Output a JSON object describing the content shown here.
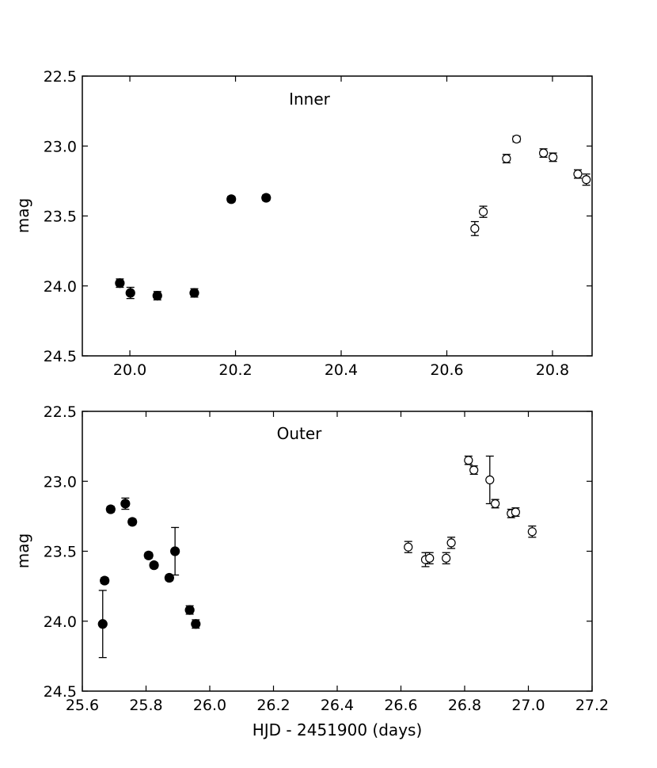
{
  "chart_data": [
    {
      "type": "scatter",
      "panel_label": "Inner",
      "xlabel": "",
      "ylabel": "mag",
      "xlim": [
        19.91,
        20.875
      ],
      "ylim": [
        24.5,
        22.5
      ],
      "y_inverted": true,
      "xticks": [
        "20.0",
        "20.2",
        "20.4",
        "20.6",
        "20.8"
      ],
      "xtick_values": [
        20.0,
        20.2,
        20.4,
        20.6,
        20.8
      ],
      "yticks": [
        "22.5",
        "23.0",
        "23.5",
        "24.0",
        "24.5"
      ],
      "ytick_values": [
        22.5,
        23.0,
        23.5,
        24.0,
        24.5
      ],
      "grid": false,
      "series": [
        {
          "marker": "filled-circle",
          "points": [
            {
              "x": 19.981,
              "y": 23.98,
              "err": 0.03
            },
            {
              "x": 20.001,
              "y": 24.05,
              "err": 0.04
            },
            {
              "x": 20.052,
              "y": 24.07,
              "err": 0.03
            },
            {
              "x": 20.122,
              "y": 24.05,
              "err": 0.03
            },
            {
              "x": 20.192,
              "y": 23.38,
              "err": 0.02
            },
            {
              "x": 20.258,
              "y": 23.37,
              "err": 0.02
            }
          ]
        },
        {
          "marker": "open-circle",
          "points": [
            {
              "x": 20.653,
              "y": 23.59,
              "err": 0.05
            },
            {
              "x": 20.669,
              "y": 23.47,
              "err": 0.04
            },
            {
              "x": 20.713,
              "y": 23.09,
              "err": 0.03
            },
            {
              "x": 20.732,
              "y": 22.95,
              "err": 0.02
            },
            {
              "x": 20.783,
              "y": 23.05,
              "err": 0.03
            },
            {
              "x": 20.801,
              "y": 23.08,
              "err": 0.03
            },
            {
              "x": 20.848,
              "y": 23.2,
              "err": 0.03
            },
            {
              "x": 20.864,
              "y": 23.24,
              "err": 0.04
            }
          ]
        }
      ]
    },
    {
      "type": "scatter",
      "panel_label": "Outer",
      "xlabel": "HJD - 2451900 (days)",
      "ylabel": "mag",
      "xlim": [
        25.6,
        27.2
      ],
      "ylim": [
        24.5,
        22.5
      ],
      "y_inverted": true,
      "xticks": [
        "25.6",
        "25.8",
        "26.0",
        "26.2",
        "26.4",
        "26.6",
        "26.8",
        "27.0",
        "27.2"
      ],
      "xtick_values": [
        25.6,
        25.8,
        26.0,
        26.2,
        26.4,
        26.6,
        26.8,
        27.0,
        27.2
      ],
      "yticks": [
        "22.5",
        "23.0",
        "23.5",
        "24.0",
        "24.5"
      ],
      "ytick_values": [
        22.5,
        23.0,
        23.5,
        24.0,
        24.5
      ],
      "grid": false,
      "series": [
        {
          "marker": "filled-circle",
          "points": [
            {
              "x": 25.664,
              "y": 24.02,
              "err": 0.24
            },
            {
              "x": 25.67,
              "y": 23.71,
              "err": 0.02
            },
            {
              "x": 25.689,
              "y": 23.2,
              "err": 0.02
            },
            {
              "x": 25.735,
              "y": 23.16,
              "err": 0.04
            },
            {
              "x": 25.757,
              "y": 23.29,
              "err": 0.02
            },
            {
              "x": 25.808,
              "y": 23.53,
              "err": 0.02
            },
            {
              "x": 25.825,
              "y": 23.6,
              "err": 0.02
            },
            {
              "x": 25.873,
              "y": 23.69,
              "err": 0.02
            },
            {
              "x": 25.891,
              "y": 23.5,
              "err": 0.17
            },
            {
              "x": 25.937,
              "y": 23.92,
              "err": 0.03
            },
            {
              "x": 25.956,
              "y": 24.02,
              "err": 0.03
            }
          ]
        },
        {
          "marker": "open-circle",
          "points": [
            {
              "x": 26.623,
              "y": 23.47,
              "err": 0.04
            },
            {
              "x": 26.677,
              "y": 23.56,
              "err": 0.05
            },
            {
              "x": 26.69,
              "y": 23.55,
              "err": 0.04
            },
            {
              "x": 26.742,
              "y": 23.55,
              "err": 0.04
            },
            {
              "x": 26.758,
              "y": 23.44,
              "err": 0.04
            },
            {
              "x": 26.812,
              "y": 22.85,
              "err": 0.03
            },
            {
              "x": 26.829,
              "y": 22.92,
              "err": 0.03
            },
            {
              "x": 26.879,
              "y": 22.99,
              "err": 0.17
            },
            {
              "x": 26.896,
              "y": 23.16,
              "err": 0.03
            },
            {
              "x": 26.946,
              "y": 23.23,
              "err": 0.03
            },
            {
              "x": 26.96,
              "y": 23.22,
              "err": 0.03
            },
            {
              "x": 27.012,
              "y": 23.36,
              "err": 0.04
            }
          ]
        }
      ]
    }
  ]
}
